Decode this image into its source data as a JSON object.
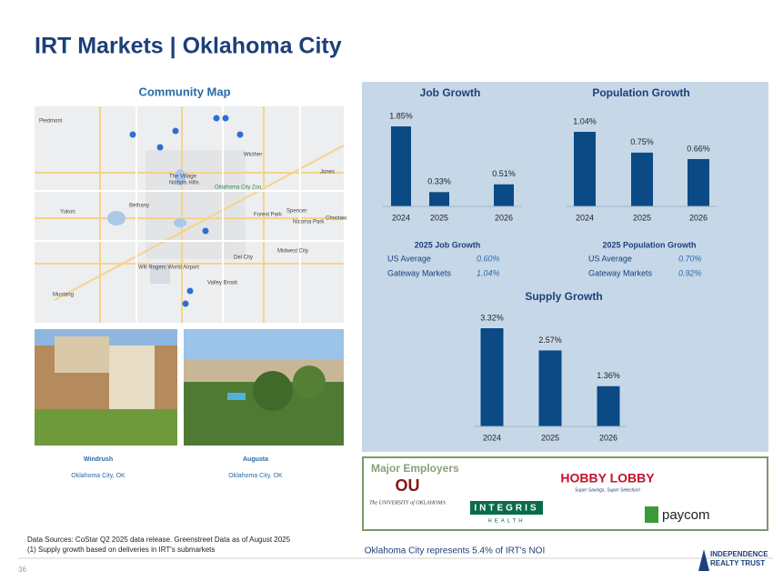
{
  "title": "IRT Markets | Oklahoma City",
  "map": {
    "heading": "Community Map",
    "labels": [
      "Piedmont",
      "Oklahoma City Zoo",
      "Nichols Hills",
      "The Village",
      "Bethany",
      "Yukon",
      "Forest Park",
      "Spencer",
      "Jones",
      "Midwest City",
      "Del City",
      "Will Rogers World Airport",
      "Valley Brook",
      "Mustang",
      "Choctaw",
      "Nicoma Park",
      "Wicther"
    ]
  },
  "properties": [
    {
      "name": "Windrush",
      "location": "Oklahoma City, OK"
    },
    {
      "name": "Augusta",
      "location": "Oklahoma City, OK"
    }
  ],
  "chart_data": [
    {
      "type": "bar",
      "title": "Job Growth",
      "categories": [
        "2024",
        "2025",
        "2026"
      ],
      "values": [
        1.85,
        0.33,
        0.51
      ],
      "value_labels": [
        "1.85%",
        "0.33%",
        "0.51%"
      ],
      "color": "#0b4a85"
    },
    {
      "type": "bar",
      "title": "Population Growth",
      "categories": [
        "2024",
        "2025",
        "2026"
      ],
      "values": [
        1.04,
        0.75,
        0.66
      ],
      "value_labels": [
        "1.04%",
        "0.75%",
        "0.66%"
      ],
      "color": "#0b4a85"
    },
    {
      "type": "bar",
      "title": "Supply Growth",
      "categories": [
        "2024",
        "2025",
        "2026"
      ],
      "values": [
        3.32,
        2.57,
        1.36
      ],
      "value_labels": [
        "3.32%",
        "2.57%",
        "1.36%"
      ],
      "color": "#0b4a85"
    }
  ],
  "stats": [
    {
      "title": "2025 Job Growth",
      "rows": [
        [
          "US Average",
          "0.60%"
        ],
        [
          "Gateway Markets",
          "1.04%"
        ]
      ]
    },
    {
      "title": "2025 Population Growth",
      "rows": [
        [
          "US Average",
          "0.70%"
        ],
        [
          "Gateway Markets",
          "0.92%"
        ]
      ]
    }
  ],
  "employers": {
    "heading": "Major Employers",
    "ou": "The UNIVERSITY of OKLAHOMA",
    "hobby_lobby": "HOBBY LOBBY",
    "hobby_tagline": "Super Savings, Super Selection!",
    "integris": "INTEGRIS",
    "integris_sub": "HEALTH",
    "paycom": "paycom"
  },
  "footer": {
    "sources": "Data Sources: CoStar Q2 2025 data release. Greenstreet Data as of August 2025",
    "note": "(1)  Supply growth based on deliveries in IRT's submarkets",
    "noi": "Oklahoma City represents 5.4% of IRT's NOI",
    "page": "36",
    "logo_top": "INDEPENDENCE",
    "logo_bottom": "REALTY TRUST"
  }
}
